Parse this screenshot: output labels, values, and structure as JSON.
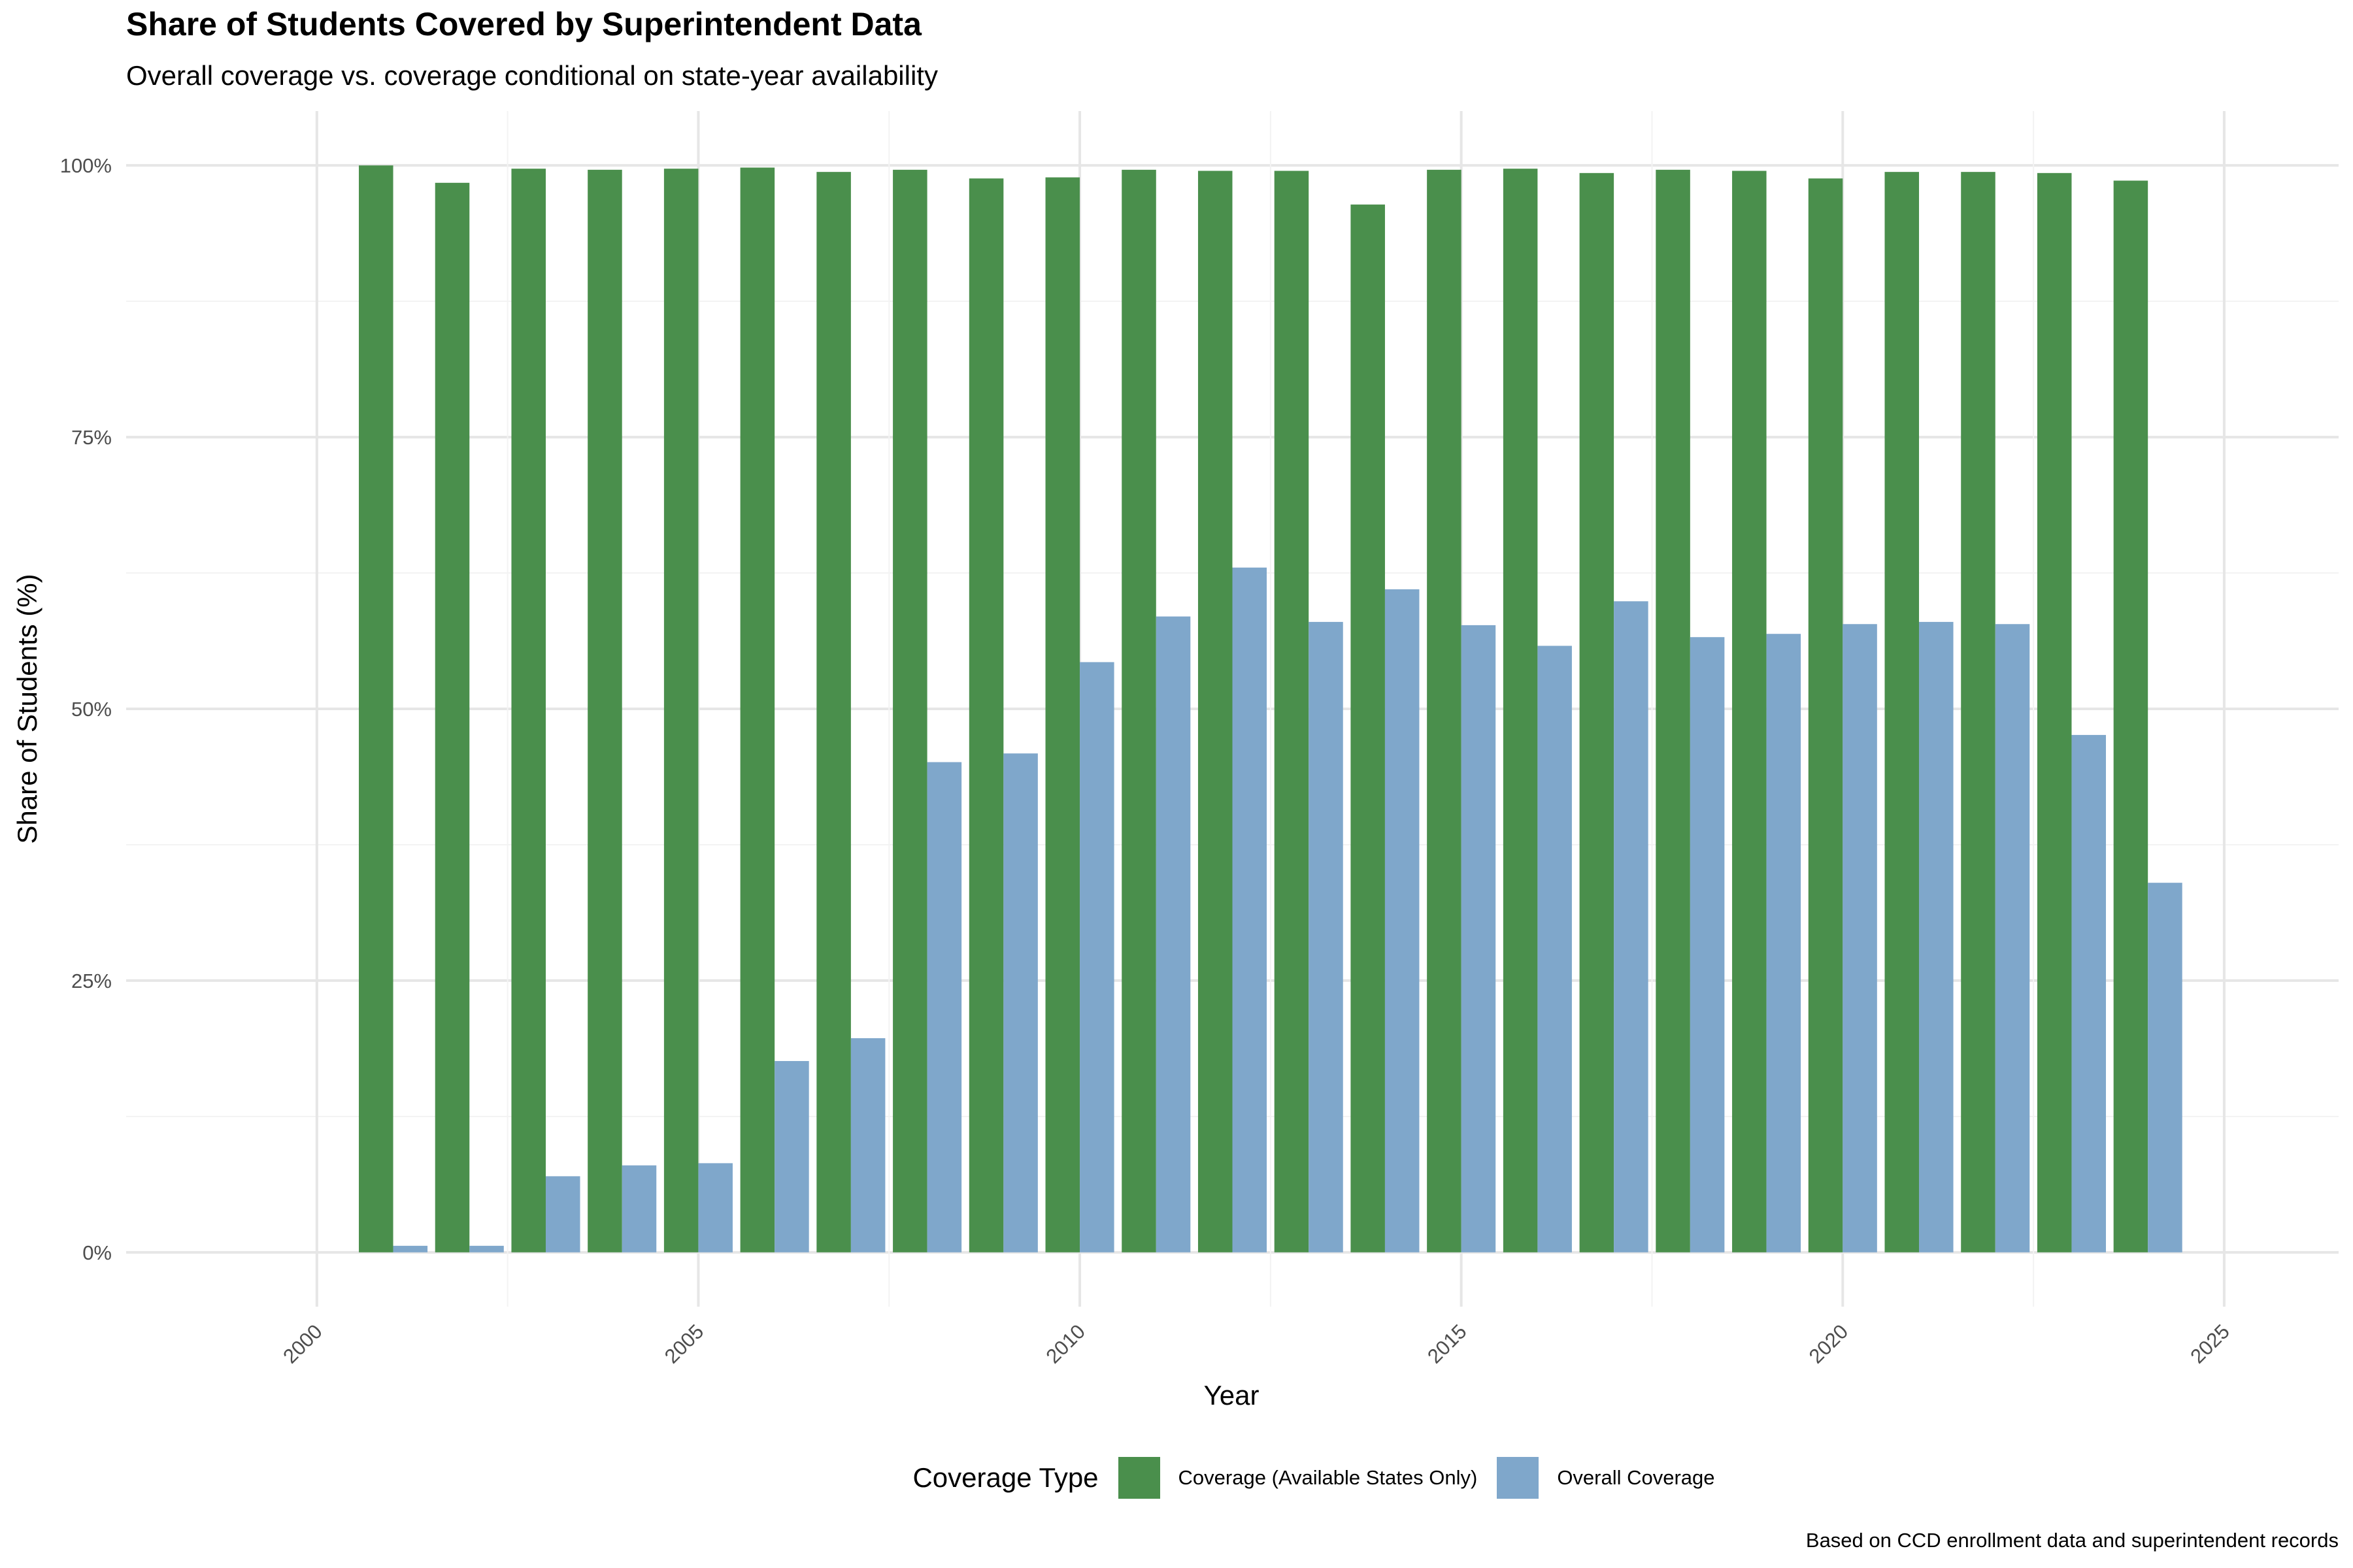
{
  "chart_data": {
    "type": "bar",
    "title": "Share of Students Covered by Superintendent Data",
    "subtitle": "Overall coverage vs. coverage conditional on state-year availability",
    "caption": "Based on CCD enrollment data and superintendent records",
    "xlabel": "Year",
    "ylabel": "Share of Students (%)",
    "x_ticks": [
      "2000",
      "2005",
      "2010",
      "2015",
      "2020",
      "2025"
    ],
    "y_ticks": [
      "0%",
      "25%",
      "50%",
      "75%",
      "100%"
    ],
    "xlim": [
      1997.5,
      2026.5
    ],
    "ylim": [
      -5,
      105
    ],
    "grid": true,
    "legend": {
      "title": "Coverage Type",
      "position": "bottom"
    },
    "x": [
      2001,
      2002,
      2003,
      2004,
      2005,
      2006,
      2007,
      2008,
      2009,
      2010,
      2011,
      2012,
      2013,
      2014,
      2015,
      2016,
      2017,
      2018,
      2019,
      2020,
      2021,
      2022,
      2023,
      2024
    ],
    "series": [
      {
        "name": "Coverage (Available States Only)",
        "color": "#2E7D32",
        "values": [
          100,
          98.4,
          99.7,
          99.6,
          99.7,
          99.8,
          99.4,
          99.6,
          98.8,
          98.9,
          99.6,
          99.5,
          99.5,
          96.4,
          99.6,
          99.7,
          99.3,
          99.6,
          99.5,
          98.8,
          99.4,
          99.4,
          99.3,
          98.6
        ]
      },
      {
        "name": "Overall Coverage",
        "color": "#6A9AC4",
        "values": [
          0.6,
          0.6,
          7.0,
          8.0,
          8.2,
          17.6,
          19.7,
          45.1,
          45.9,
          54.3,
          58.5,
          63.0,
          58.0,
          61.0,
          57.7,
          55.8,
          59.9,
          56.6,
          56.9,
          57.8,
          58.0,
          57.8,
          47.6,
          34.0
        ]
      }
    ]
  }
}
